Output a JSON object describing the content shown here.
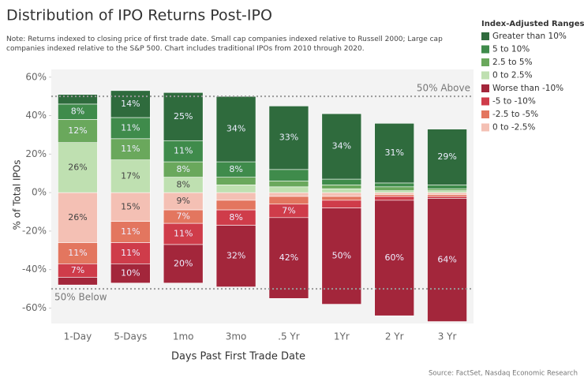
{
  "chart_data": {
    "type": "diverging-stacked-bar",
    "title": "Distribution of IPO Returns Post-IPO",
    "subtitle": "Note: Returns indexed to closing price of first trade date. Small cap companies indexed relative to Russell 2000; Large cap companies indexed relative to the S&P 500. Chart includes traditional IPOs from 2010 through 2020.",
    "x_label": "Days Past First Trade Date",
    "y_label": "% of Total IPOs",
    "source": "Source: FactSet, Nasdaq Economic Research",
    "legend_title": "Index-Adjusted Ranges",
    "categories": [
      "1-Day",
      "5-Days",
      "1mo",
      "3mo",
      ".5 Yr",
      "1Yr",
      "2 Yr",
      "3 Yr"
    ],
    "ylim": [
      -68,
      64
    ],
    "yticks": [
      {
        "value": 60,
        "label": "60%"
      },
      {
        "value": 40,
        "label": "40%"
      },
      {
        "value": 20,
        "label": "20%"
      },
      {
        "value": 0,
        "label": "0%"
      },
      {
        "value": -20,
        "label": "-20%"
      },
      {
        "value": -40,
        "label": "-40%"
      },
      {
        "value": -60,
        "label": "-60%"
      }
    ],
    "reference_lines": [
      {
        "value": 50,
        "label": "50% Above"
      },
      {
        "value": -50,
        "label": "50% Below"
      }
    ],
    "series": [
      {
        "name": "Greater than 10%",
        "color": "#2f6b3d",
        "values": [
          5,
          14,
          25,
          34,
          33,
          34,
          31,
          29
        ],
        "value_labels": [
          null,
          "14%",
          "25%",
          "34%",
          "33%",
          "34%",
          "31%",
          "29%"
        ]
      },
      {
        "name": "5 to 10%",
        "color": "#3f8b4b",
        "values": [
          8,
          11,
          11,
          8,
          6,
          3,
          2,
          2
        ],
        "value_labels": [
          "8%",
          "11%",
          "11%",
          "8%",
          null,
          null,
          null,
          null
        ]
      },
      {
        "name": "2.5 to 5%",
        "color": "#6aa85c",
        "values": [
          12,
          11,
          8,
          4,
          3,
          2,
          2,
          1
        ],
        "value_labels": [
          "12%",
          "11%",
          "8%",
          null,
          null,
          null,
          null,
          null
        ]
      },
      {
        "name": "0 to 2.5%",
        "color": "#bfe0b1",
        "values": [
          26,
          17,
          8,
          4,
          3,
          2,
          1,
          1
        ],
        "value_labels": [
          "26%",
          "17%",
          "8%",
          null,
          null,
          null,
          null,
          null
        ]
      },
      {
        "name": "Worse than -10%",
        "color": "#a3263b",
        "values": [
          -4,
          -10,
          -20,
          -32,
          -42,
          -50,
          -60,
          -64
        ],
        "value_labels": [
          null,
          "10%",
          "20%",
          "32%",
          "42%",
          "50%",
          "60%",
          "64%"
        ]
      },
      {
        "name": "-5 to -10%",
        "color": "#cf3c4a",
        "values": [
          -7,
          -11,
          -11,
          -8,
          -7,
          -4,
          -2,
          -1
        ],
        "value_labels": [
          "7%",
          "11%",
          "11%",
          "8%",
          "7%",
          null,
          null,
          null
        ]
      },
      {
        "name": "-2.5 to -5%",
        "color": "#e3765f",
        "values": [
          -11,
          -11,
          -7,
          -5,
          -4,
          -2,
          -1,
          -1
        ],
        "value_labels": [
          "11%",
          "11%",
          "7%",
          null,
          null,
          null,
          null,
          null
        ]
      },
      {
        "name": "0 to -2.5%",
        "color": "#f4c0b4",
        "values": [
          -26,
          -15,
          -9,
          -4,
          -2,
          -2,
          -1,
          -1
        ],
        "value_labels": [
          "26%",
          "15%",
          "9%",
          null,
          null,
          null,
          null,
          null
        ]
      }
    ]
  }
}
